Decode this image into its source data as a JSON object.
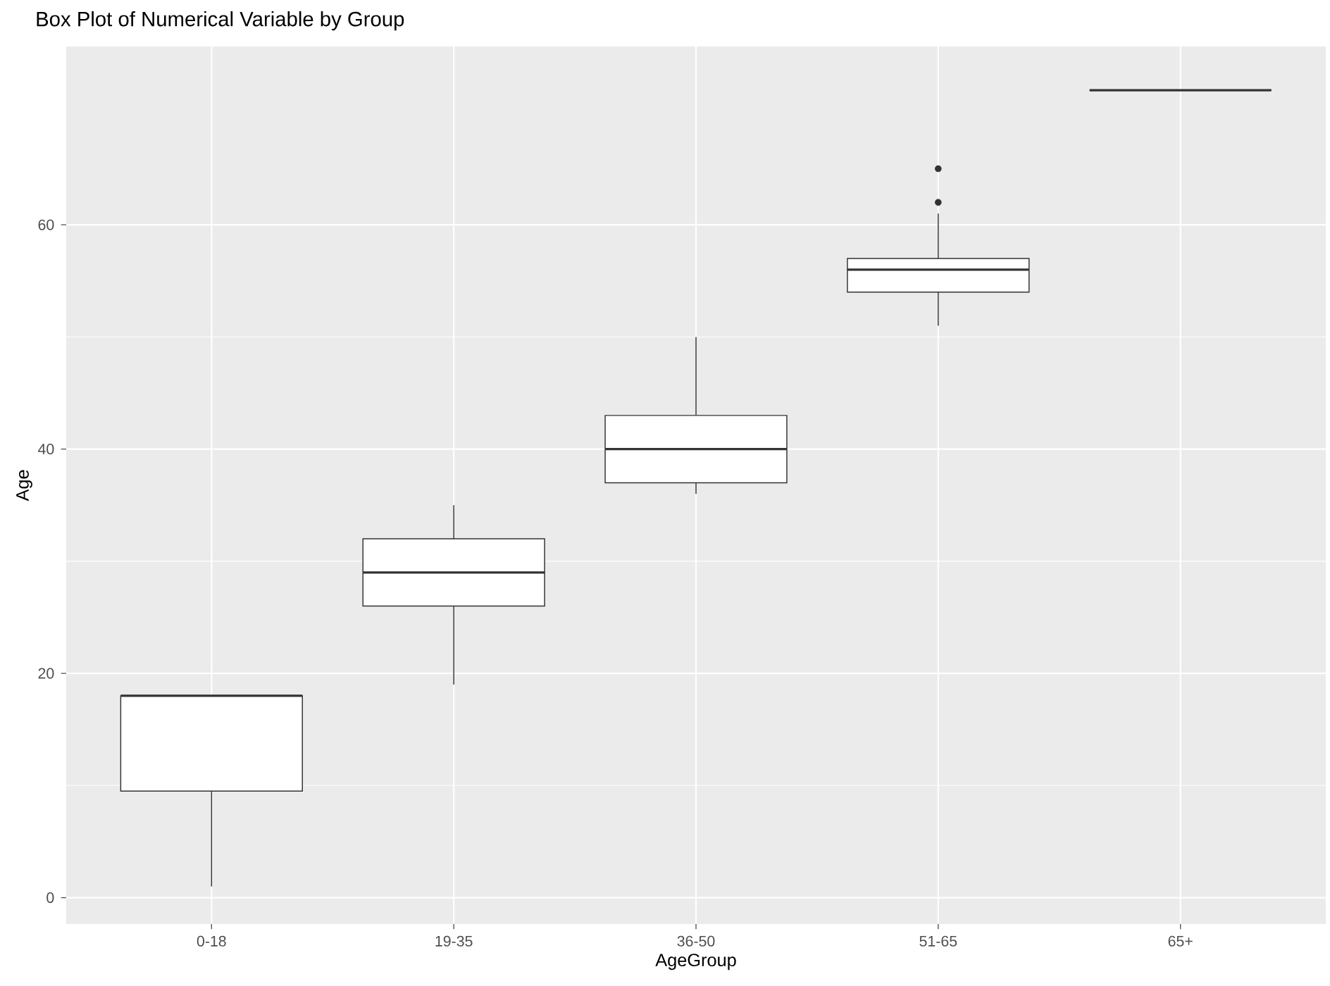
{
  "chart_data": {
    "type": "box",
    "title": "Box Plot of Numerical Variable by Group",
    "xlabel": "AgeGroup",
    "ylabel": "Age",
    "categories": [
      "0-18",
      "19-35",
      "36-50",
      "51-65",
      "65+"
    ],
    "color": "#333333",
    "boxes": [
      {
        "low": 1,
        "q1": 9.5,
        "median": 18,
        "q3": 18,
        "high": 18
      },
      {
        "low": 19,
        "q1": 26,
        "median": 29,
        "q3": 32,
        "high": 35
      },
      {
        "low": 36,
        "q1": 37,
        "median": 40,
        "q3": 43,
        "high": 50
      },
      {
        "low": 51,
        "q1": 54,
        "median": 56,
        "q3": 57,
        "high": 61,
        "outliers": [
          62,
          65
        ]
      },
      {
        "low": 72,
        "q1": 72,
        "median": 72,
        "q3": 72,
        "high": 72
      }
    ],
    "ylim": [
      -2.35,
      75.9
    ],
    "yticks": [
      0,
      20,
      40,
      60
    ],
    "grid": true
  }
}
